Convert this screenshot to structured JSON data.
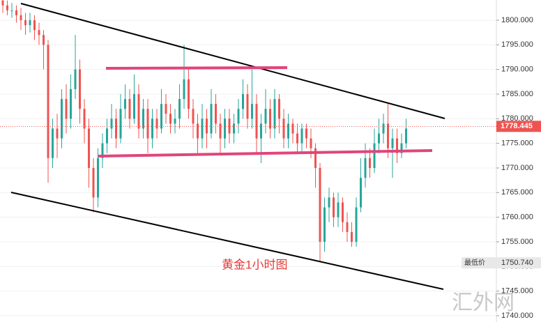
{
  "chart_data": {
    "type": "candlestick",
    "annotation": "黄金1小时图",
    "watermark": "汇外网",
    "ylim": [
      1738.73,
      1804.1
    ],
    "yticks": [
      {
        "value": 1740,
        "label": "1740.000"
      },
      {
        "value": 1745,
        "label": "1745.000"
      },
      {
        "value": 1750,
        "label": "1750.000"
      },
      {
        "value": 1755,
        "label": "1755.000"
      },
      {
        "value": 1760,
        "label": "1760.000"
      },
      {
        "value": 1765,
        "label": "1765.000"
      },
      {
        "value": 1770,
        "label": "1770.000"
      },
      {
        "value": 1775,
        "label": "1775.000"
      },
      {
        "value": 1780,
        "label": "1780.000"
      },
      {
        "value": 1785,
        "label": "1785.000"
      },
      {
        "value": 1790,
        "label": "1790.000"
      },
      {
        "value": 1795,
        "label": "1795.000"
      },
      {
        "value": 1800,
        "label": "1800.000"
      }
    ],
    "last_price": 1778.445,
    "low_marker": {
      "label": "最低价",
      "price": {
        "value": 1750.74,
        "label": "1750.740"
      }
    },
    "up_color": "#26a69a",
    "down_color": "#ef5350",
    "open": [
      1804,
      1803,
      1802,
      1802,
      1801,
      1800,
      1799,
      1800,
      1798,
      1797,
      1795,
      1772,
      1778,
      1776,
      1784,
      1780,
      1786,
      1790,
      1782,
      1778,
      1770,
      1764,
      1772,
      1775,
      1778,
      1780,
      1776,
      1782,
      1784,
      1780,
      1785,
      1778,
      1782,
      1776,
      1780,
      1778,
      1783,
      1781,
      1779,
      1780,
      1784,
      1788,
      1782,
      1779,
      1776,
      1780,
      1777,
      1783,
      1779,
      1776,
      1780,
      1777,
      1779,
      1782,
      1785,
      1780,
      1783,
      1776,
      1779,
      1782,
      1778,
      1784,
      1780,
      1776,
      1779,
      1777,
      1775,
      1778,
      1776,
      1774,
      1770,
      1755,
      1762,
      1764,
      1760,
      1763,
      1759,
      1757,
      1755,
      1762,
      1768,
      1772,
      1770,
      1775,
      1777,
      1779,
      1774,
      1776,
      1773,
      1775
    ],
    "high": [
      1804.5,
      1804,
      1803.5,
      1803,
      1802.5,
      1801.5,
      1801.5,
      1801,
      1799.5,
      1798,
      1796,
      1780,
      1781,
      1786,
      1787,
      1789,
      1797,
      1792,
      1784,
      1780,
      1772,
      1774,
      1777,
      1780,
      1783,
      1782,
      1785,
      1787,
      1786,
      1789,
      1787,
      1784,
      1784,
      1782,
      1782,
      1786,
      1785,
      1783,
      1782,
      1787,
      1795,
      1790,
      1784,
      1781,
      1783,
      1782,
      1786,
      1785,
      1781,
      1782,
      1782,
      1781,
      1784,
      1788,
      1787,
      1790,
      1785,
      1781,
      1786,
      1784,
      1786,
      1785,
      1782,
      1781,
      1780,
      1779,
      1779,
      1779,
      1778,
      1775,
      1771,
      1764,
      1766,
      1765,
      1765,
      1764,
      1761,
      1759,
      1764,
      1772,
      1775,
      1774,
      1778,
      1780,
      1781,
      1783,
      1778,
      1778,
      1777,
      1780
    ],
    "low": [
      1801.5,
      1801,
      1800.5,
      1799.5,
      1798,
      1797,
      1797.5,
      1796,
      1795,
      1790,
      1767,
      1770,
      1772,
      1774,
      1777,
      1778,
      1784,
      1779,
      1775,
      1766,
      1761,
      1762,
      1770,
      1773,
      1776,
      1774,
      1775,
      1780,
      1778,
      1779,
      1776,
      1776,
      1773,
      1774,
      1776,
      1777,
      1779,
      1777,
      1777,
      1778,
      1782,
      1780,
      1776,
      1773,
      1774,
      1774,
      1776,
      1777,
      1773,
      1774,
      1775,
      1775,
      1777,
      1780,
      1778,
      1778,
      1773,
      1771,
      1777,
      1776,
      1776,
      1777,
      1774,
      1774,
      1775,
      1773,
      1773,
      1774,
      1772,
      1766,
      1751,
      1753,
      1759,
      1758,
      1758,
      1757,
      1755,
      1754,
      1754,
      1761,
      1766,
      1768,
      1769,
      1773,
      1775,
      1772,
      1768,
      1771,
      1772,
      1774
    ],
    "close": [
      1803,
      1802,
      1802,
      1801,
      1800,
      1799,
      1800,
      1798,
      1797,
      1795,
      1772,
      1778,
      1776,
      1784,
      1780,
      1786,
      1790,
      1782,
      1778,
      1770,
      1764,
      1772,
      1775,
      1778,
      1780,
      1776,
      1782,
      1784,
      1780,
      1785,
      1778,
      1782,
      1776,
      1780,
      1778,
      1783,
      1781,
      1779,
      1780,
      1784,
      1788,
      1782,
      1779,
      1776,
      1780,
      1777,
      1783,
      1779,
      1776,
      1780,
      1777,
      1779,
      1782,
      1785,
      1780,
      1783,
      1776,
      1779,
      1782,
      1778,
      1784,
      1780,
      1776,
      1779,
      1777,
      1775,
      1778,
      1776,
      1774,
      1770,
      1755,
      1762,
      1764,
      1760,
      1763,
      1759,
      1757,
      1755,
      1762,
      1768,
      1772,
      1770,
      1775,
      1777,
      1779,
      1774,
      1776,
      1773,
      1775,
      1778
    ]
  }
}
